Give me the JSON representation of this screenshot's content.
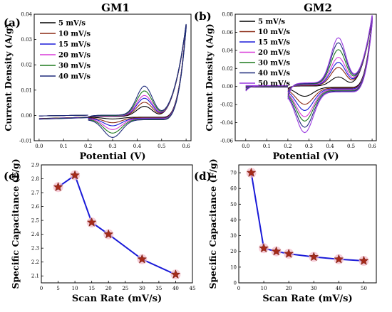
{
  "figure": {
    "panels": [
      {
        "label": "(a)"
      },
      {
        "label": "(b)"
      },
      {
        "label": "(c)"
      },
      {
        "label": "(d)"
      }
    ]
  },
  "chart_data": [
    {
      "type": "line",
      "title": "GM1",
      "xlabel": "Potential  (V)",
      "ylabel": "Current Density (A/g)",
      "xlim": [
        -0.02,
        0.62
      ],
      "ylim": [
        -0.01,
        0.04
      ],
      "xticks": [
        0.0,
        0.1,
        0.2,
        0.3,
        0.4,
        0.5,
        0.6
      ],
      "yticks": [
        -0.01,
        0.0,
        0.01,
        0.02,
        0.03,
        0.04
      ],
      "xtick_labels": [
        "0.0",
        "0.1",
        "0.2",
        "0.3",
        "0.4",
        "0.5",
        "0.6"
      ],
      "ytick_labels": [
        "-0.01",
        "0.00",
        "0.01",
        "0.02",
        "0.03",
        "0.04"
      ],
      "grid": false,
      "legend": "top-left",
      "color_notes": "series colors in legend order",
      "series": [
        {
          "name": "5 mV/s",
          "color": "#000000",
          "anodic_peak": [
            0.43,
            0.0035
          ],
          "cathodic_peak": [
            0.3,
            -0.0012
          ],
          "end": [
            0.6,
            0.0355
          ]
        },
        {
          "name": "10 mV/s",
          "color": "#8b2a14",
          "anodic_peak": [
            0.43,
            0.005
          ],
          "cathodic_peak": [
            0.3,
            -0.0025
          ],
          "end": [
            0.6,
            0.0355
          ]
        },
        {
          "name": "15 mV/s",
          "color": "#1a1ad8",
          "anodic_peak": [
            0.43,
            0.0065
          ],
          "cathodic_peak": [
            0.3,
            -0.0035
          ],
          "end": [
            0.6,
            0.0355
          ]
        },
        {
          "name": "20 mV/s",
          "color": "#d83ad8",
          "anodic_peak": [
            0.43,
            0.0075
          ],
          "cathodic_peak": [
            0.3,
            -0.0048
          ],
          "end": [
            0.6,
            0.0355
          ]
        },
        {
          "name": "30 mV/s",
          "color": "#1e7a1e",
          "anodic_peak": [
            0.43,
            0.0092
          ],
          "cathodic_peak": [
            0.3,
            -0.006
          ],
          "end": [
            0.6,
            0.0355
          ]
        },
        {
          "name": "40 mV/s",
          "color": "#1e2a7a",
          "anodic_peak": [
            0.43,
            0.011
          ],
          "cathodic_peak": [
            0.3,
            -0.0075
          ],
          "end": [
            0.6,
            0.0355
          ]
        }
      ]
    },
    {
      "type": "line",
      "title": "GM2",
      "xlabel": "Potential  (V)",
      "ylabel": "Current Density (A/g)",
      "xlim": [
        -0.05,
        0.62
      ],
      "ylim": [
        -0.06,
        0.08
      ],
      "xticks": [
        0.0,
        0.1,
        0.2,
        0.3,
        0.4,
        0.5,
        0.6
      ],
      "yticks": [
        -0.06,
        -0.04,
        -0.02,
        0.0,
        0.02,
        0.04,
        0.06,
        0.08
      ],
      "xtick_labels": [
        "0.0",
        "0.1",
        "0.2",
        "0.3",
        "0.4",
        "0.5",
        "0.6"
      ],
      "ytick_labels": [
        "-0.06",
        "-0.04",
        "-0.02",
        "0.00",
        "0.02",
        "0.04",
        "0.06",
        "0.08"
      ],
      "grid": false,
      "legend": "top-left",
      "series": [
        {
          "name": "5 mV/s",
          "color": "#000000",
          "anodic_peak": [
            0.44,
            0.01
          ],
          "cathodic_peak": [
            0.28,
            -0.01
          ],
          "end": [
            0.6,
            0.075
          ]
        },
        {
          "name": "10 mV/s",
          "color": "#8b2a14",
          "anodic_peak": [
            0.44,
            0.02
          ],
          "cathodic_peak": [
            0.28,
            -0.018
          ],
          "end": [
            0.6,
            0.075
          ]
        },
        {
          "name": "15 mV/s",
          "color": "#1a1ad8",
          "anodic_peak": [
            0.44,
            0.025
          ],
          "cathodic_peak": [
            0.28,
            -0.024
          ],
          "end": [
            0.6,
            0.075
          ]
        },
        {
          "name": "20 mV/s",
          "color": "#d83ad8",
          "anodic_peak": [
            0.44,
            0.03
          ],
          "cathodic_peak": [
            0.28,
            -0.03
          ],
          "end": [
            0.6,
            0.075
          ]
        },
        {
          "name": "30 mV/s",
          "color": "#1e7a1e",
          "anodic_peak": [
            0.44,
            0.038
          ],
          "cathodic_peak": [
            0.28,
            -0.034
          ],
          "end": [
            0.6,
            0.075
          ]
        },
        {
          "name": "40 mV/s",
          "color": "#1e2a7a",
          "anodic_peak": [
            0.44,
            0.045
          ],
          "cathodic_peak": [
            0.28,
            -0.04
          ],
          "end": [
            0.6,
            0.075
          ]
        },
        {
          "name": "50 mV/s",
          "color": "#9a3ae0",
          "anodic_peak": [
            0.44,
            0.05
          ],
          "cathodic_peak": [
            0.28,
            -0.045
          ],
          "end": [
            0.6,
            0.075
          ]
        }
      ]
    },
    {
      "type": "line",
      "title": "",
      "xlabel": "Scan Rate (mV/s)",
      "ylabel": "Specific Capacitance (F/g)",
      "xlim": [
        0,
        45
      ],
      "ylim": [
        2.05,
        2.9
      ],
      "xticks": [
        0,
        5,
        10,
        15,
        20,
        25,
        30,
        35,
        40,
        45
      ],
      "yticks": [
        2.1,
        2.2,
        2.3,
        2.4,
        2.5,
        2.6,
        2.7,
        2.8,
        2.9
      ],
      "xtick_labels": [
        "0",
        "5",
        "10",
        "15",
        "20",
        "25",
        "30",
        "35",
        "40",
        "45"
      ],
      "ytick_labels": [
        "2.1",
        "2.2",
        "2.3",
        "2.4",
        "2.5",
        "2.6",
        "2.7",
        "2.8",
        "2.9"
      ],
      "grid": false,
      "line_color": "#1a1ad8",
      "marker": "star",
      "marker_color": "#a52a1a",
      "x": [
        5,
        10,
        15,
        20,
        30,
        40
      ],
      "y": [
        2.74,
        2.825,
        2.485,
        2.4,
        2.22,
        2.11
      ]
    },
    {
      "type": "line",
      "title": "",
      "xlabel": "Scan Rate (mV/s)",
      "ylabel": "Specific Capacitance (F/g)",
      "xlim": [
        0,
        55
      ],
      "ylim": [
        0,
        75
      ],
      "xticks": [
        0,
        10,
        20,
        30,
        40,
        50
      ],
      "yticks": [
        0,
        10,
        20,
        30,
        40,
        50,
        60,
        70
      ],
      "xtick_labels": [
        "0",
        "10",
        "20",
        "30",
        "40",
        "50"
      ],
      "ytick_labels": [
        "0",
        "10",
        "20",
        "30",
        "40",
        "50",
        "60",
        "70"
      ],
      "grid": false,
      "line_color": "#1a1ad8",
      "marker": "star",
      "marker_color": "#a52a1a",
      "x": [
        5,
        10,
        15,
        20,
        30,
        40,
        50
      ],
      "y": [
        70,
        22,
        20,
        18.5,
        16.5,
        15,
        14
      ]
    }
  ]
}
